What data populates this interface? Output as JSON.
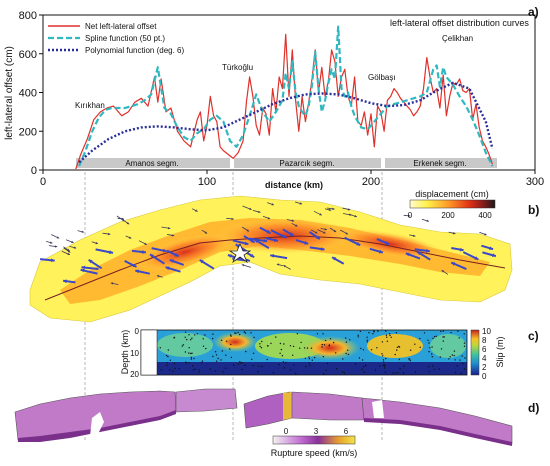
{
  "panel_a": {
    "panel_label": "a)",
    "title": "left-lateral offset distribution curves",
    "ylabel": "left-lateral offset (cm)",
    "xlabel": "distance (km)",
    "segments": [
      "Amanos segm.",
      "Pazarcık segm.",
      "Erkenek segm."
    ],
    "places": [
      "Kırıkhan",
      "Türkoğlu",
      "Gölbaşı",
      "Çelikhan"
    ]
  },
  "panel_b": {
    "panel_label": "b)",
    "colorbar_title": "displacement (cm)",
    "colorbar_ticks": [
      "0",
      "200",
      "400"
    ]
  },
  "panel_c": {
    "panel_label": "c)",
    "ylabel": "Depth (km)",
    "yticks": [
      "0",
      "10",
      "20"
    ],
    "colorbar_title": "Slip (m)",
    "colorbar_ticks": [
      "10",
      "8",
      "6",
      "4",
      "2",
      "0"
    ]
  },
  "panel_d": {
    "panel_label": "d)",
    "colorbar_title": "Rupture speed (km/s)",
    "colorbar_ticks": [
      "0",
      "3",
      "6"
    ]
  },
  "colors": {
    "net_offset": "#e0302a",
    "spline": "#2fb8c0",
    "polynomial": "#2a2f9a",
    "segment_bar": "#c9c9c9"
  },
  "chart_data": {
    "type": "line",
    "xlim": [
      0,
      300
    ],
    "ylim": [
      0,
      800
    ],
    "xticks": [
      0,
      100,
      200,
      300
    ],
    "yticks": [
      0,
      200,
      400,
      600,
      800
    ],
    "grid": false,
    "legend_position": "top-left",
    "series": [
      {
        "name": "Net left-lateral offset",
        "style": "solid",
        "x": [
          20,
          23,
          27,
          31,
          35,
          39,
          43,
          48,
          52,
          56,
          60,
          64,
          68,
          70,
          72,
          75,
          78,
          82,
          86,
          90,
          94,
          96,
          98,
          100,
          102,
          104,
          106,
          108,
          110,
          113,
          116,
          119,
          122,
          124,
          126,
          128,
          130,
          132,
          134,
          136,
          138,
          140,
          142,
          144,
          146,
          148,
          150,
          152,
          154,
          156,
          158,
          160,
          162,
          164,
          166,
          168,
          170,
          172,
          174,
          176,
          178,
          180,
          182,
          184,
          186,
          188,
          190,
          192,
          194,
          196,
          198,
          200,
          202,
          204,
          206,
          208,
          210,
          212,
          214,
          216,
          218,
          220,
          222,
          224,
          226,
          228,
          230,
          232,
          234,
          236,
          238,
          240,
          242,
          244,
          246,
          248,
          250,
          252,
          254,
          256,
          258,
          260,
          262,
          264,
          266,
          268,
          270,
          272,
          274
        ],
        "y": [
          5,
          80,
          160,
          260,
          300,
          320,
          330,
          280,
          300,
          350,
          370,
          330,
          480,
          350,
          470,
          300,
          320,
          200,
          150,
          120,
          260,
          300,
          150,
          230,
          380,
          280,
          250,
          120,
          100,
          80,
          60,
          90,
          150,
          350,
          480,
          380,
          230,
          180,
          320,
          290,
          180,
          420,
          300,
          480,
          420,
          700,
          380,
          620,
          360,
          200,
          380,
          250,
          350,
          470,
          620,
          400,
          530,
          380,
          460,
          620,
          560,
          380,
          480,
          520,
          380,
          330,
          480,
          250,
          230,
          300,
          180,
          290,
          120,
          330,
          300,
          200,
          360,
          380,
          420,
          400,
          370,
          350,
          330,
          310,
          280,
          300,
          330,
          420,
          580,
          480,
          400,
          420,
          320,
          490,
          280,
          380,
          450,
          440,
          470,
          410,
          400,
          420,
          260,
          340,
          220,
          150,
          120,
          80,
          30
        ]
      },
      {
        "name": "Spline function (50 pt.)",
        "style": "dashed",
        "x": [
          22,
          26,
          30,
          34,
          38,
          42,
          46,
          50,
          54,
          58,
          62,
          66,
          70,
          74,
          78,
          82,
          86,
          90,
          94,
          98,
          102,
          106,
          110,
          114,
          118,
          122,
          126,
          130,
          134,
          138,
          142,
          146,
          148,
          150,
          152,
          154,
          156,
          158,
          160,
          162,
          164,
          166,
          168,
          170,
          172,
          174,
          176,
          178,
          180,
          182,
          184,
          186,
          188,
          190,
          192,
          194,
          198,
          202,
          206,
          210,
          214,
          218,
          222,
          226,
          230,
          234,
          238,
          240,
          242,
          244,
          246,
          250,
          254,
          258,
          262,
          266,
          270,
          274
        ],
        "y": [
          20,
          100,
          200,
          270,
          310,
          320,
          320,
          320,
          330,
          340,
          360,
          390,
          530,
          320,
          290,
          220,
          170,
          150,
          190,
          210,
          260,
          280,
          250,
          150,
          120,
          180,
          280,
          390,
          300,
          250,
          300,
          360,
          500,
          420,
          560,
          400,
          330,
          300,
          280,
          330,
          440,
          610,
          420,
          300,
          360,
          450,
          520,
          470,
          740,
          420,
          380,
          400,
          330,
          280,
          250,
          220,
          210,
          250,
          290,
          330,
          340,
          350,
          360,
          370,
          380,
          400,
          520,
          540,
          430,
          530,
          480,
          440,
          380,
          330,
          260,
          180,
          90,
          20
        ]
      },
      {
        "name": "Polynomial function (deg. 6)",
        "style": "dotted",
        "x": [
          22,
          30,
          40,
          50,
          60,
          70,
          80,
          90,
          100,
          110,
          120,
          130,
          140,
          150,
          160,
          170,
          180,
          190,
          200,
          210,
          220,
          230,
          240,
          250,
          260,
          270,
          274
        ],
        "y": [
          40,
          100,
          160,
          200,
          220,
          225,
          220,
          210,
          205,
          220,
          260,
          300,
          340,
          370,
          390,
          395,
          390,
          370,
          345,
          330,
          335,
          360,
          410,
          450,
          420,
          250,
          110
        ]
      }
    ]
  }
}
